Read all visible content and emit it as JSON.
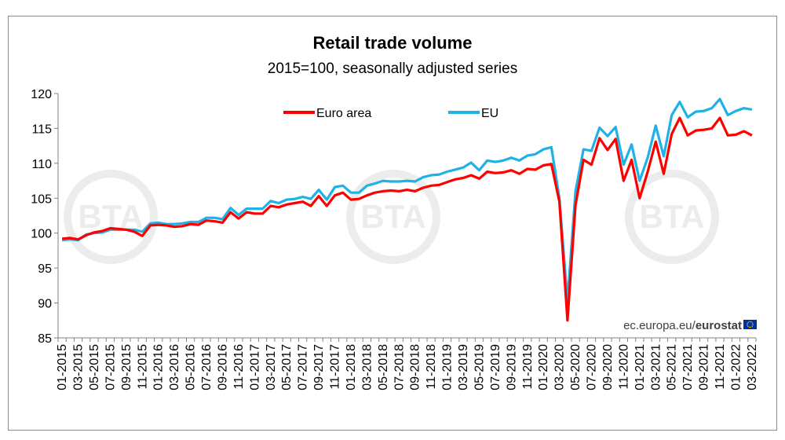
{
  "chart_data": {
    "type": "line",
    "title": "Retail trade volume",
    "subtitle": "2015=100, seasonally adjusted series",
    "xlabel": "",
    "ylabel": "",
    "ylim": [
      85,
      120
    ],
    "y_ticks": [
      85,
      90,
      95,
      100,
      105,
      110,
      115,
      120
    ],
    "grid": false,
    "legend_position": "top-center",
    "x": [
      "01-2015",
      "02-2015",
      "03-2015",
      "04-2015",
      "05-2015",
      "06-2015",
      "07-2015",
      "08-2015",
      "09-2015",
      "10-2015",
      "11-2015",
      "12-2015",
      "01-2016",
      "02-2016",
      "03-2016",
      "04-2016",
      "05-2016",
      "06-2016",
      "07-2016",
      "08-2016",
      "09-2016",
      "10-2016",
      "11-2016",
      "12-2016",
      "01-2017",
      "02-2017",
      "03-2017",
      "04-2017",
      "05-2017",
      "06-2017",
      "07-2017",
      "08-2017",
      "09-2017",
      "10-2017",
      "11-2017",
      "12-2017",
      "01-2018",
      "02-2018",
      "03-2018",
      "04-2018",
      "05-2018",
      "06-2018",
      "07-2018",
      "08-2018",
      "09-2018",
      "10-2018",
      "11-2018",
      "12-2018",
      "01-2019",
      "02-2019",
      "03-2019",
      "04-2019",
      "05-2019",
      "06-2019",
      "07-2019",
      "08-2019",
      "09-2019",
      "10-2019",
      "11-2019",
      "12-2019",
      "01-2020",
      "02-2020",
      "03-2020",
      "04-2020",
      "05-2020",
      "06-2020",
      "07-2020",
      "08-2020",
      "09-2020",
      "10-2020",
      "11-2020",
      "12-2020",
      "01-2021",
      "02-2021",
      "03-2021",
      "04-2021",
      "05-2021",
      "06-2021",
      "07-2021",
      "08-2021",
      "09-2021",
      "10-2021",
      "11-2021",
      "12-2021",
      "01-2022",
      "02-2022",
      "03-2022"
    ],
    "x_tick_labels": [
      "01-2015",
      "03-2015",
      "05-2015",
      "07-2015",
      "09-2015",
      "11-2015",
      "01-2016",
      "03-2016",
      "05-2016",
      "07-2016",
      "09-2016",
      "11-2016",
      "01-2017",
      "03-2017",
      "05-2017",
      "07-2017",
      "09-2017",
      "11-2017",
      "01-2018",
      "03-2018",
      "05-2018",
      "07-2018",
      "09-2018",
      "11-2018",
      "01-2019",
      "03-2019",
      "05-2019",
      "07-2019",
      "09-2019",
      "11-2019",
      "01-2020",
      "03-2020",
      "05-2020",
      "07-2020",
      "09-2020",
      "11-2020",
      "01-2021",
      "03-2021",
      "05-2021",
      "07-2021",
      "09-2021",
      "11-2021",
      "01-2022",
      "03-2022"
    ],
    "series": [
      {
        "name": "Euro area",
        "color": "#ff0000",
        "values": [
          99.2,
          99.3,
          99.1,
          99.7,
          100.1,
          100.3,
          100.7,
          100.6,
          100.5,
          100.2,
          99.6,
          101.1,
          101.2,
          101.1,
          100.9,
          101.0,
          101.3,
          101.2,
          101.8,
          101.7,
          101.5,
          103.0,
          102.1,
          103.0,
          102.8,
          102.8,
          103.9,
          103.7,
          104.1,
          104.3,
          104.5,
          103.9,
          105.3,
          103.9,
          105.4,
          105.8,
          104.8,
          104.9,
          105.4,
          105.8,
          106.0,
          106.1,
          106.0,
          106.2,
          106.0,
          106.5,
          106.8,
          106.9,
          107.3,
          107.7,
          107.9,
          108.3,
          107.8,
          108.8,
          108.6,
          108.7,
          109.0,
          108.5,
          109.2,
          109.1,
          109.7,
          109.9,
          104.5,
          87.5,
          104.0,
          110.5,
          109.8,
          113.6,
          111.9,
          113.5,
          107.5,
          110.5,
          105.0,
          108.8,
          113.1,
          108.5,
          114.2,
          116.5,
          114.0,
          114.7,
          114.8,
          115.0,
          116.5,
          114.0,
          114.1,
          114.6,
          114.0
        ]
      },
      {
        "name": "EU",
        "color": "#1fb2e6",
        "values": [
          99.0,
          99.1,
          99.0,
          99.8,
          100.0,
          100.1,
          100.5,
          100.5,
          100.5,
          100.5,
          100.2,
          101.4,
          101.5,
          101.3,
          101.3,
          101.4,
          101.6,
          101.6,
          102.2,
          102.2,
          102.0,
          103.6,
          102.6,
          103.5,
          103.5,
          103.5,
          104.6,
          104.3,
          104.8,
          104.9,
          105.2,
          104.9,
          106.2,
          104.8,
          106.6,
          106.8,
          105.8,
          105.8,
          106.8,
          107.1,
          107.5,
          107.4,
          107.4,
          107.5,
          107.4,
          108.0,
          108.3,
          108.4,
          108.8,
          109.1,
          109.4,
          110.1,
          109.0,
          110.4,
          110.2,
          110.4,
          110.8,
          110.4,
          111.1,
          111.3,
          112.0,
          112.3,
          105.0,
          90.3,
          106.0,
          112.0,
          111.8,
          115.1,
          113.9,
          115.2,
          109.8,
          112.7,
          107.5,
          110.8,
          115.4,
          111.0,
          116.9,
          118.8,
          116.6,
          117.4,
          117.5,
          117.9,
          119.2,
          116.9,
          117.5,
          117.9,
          117.7
        ]
      }
    ],
    "source_label_plain": "ec.europa.eu/",
    "source_label_bold": "eurostat",
    "flag_icon": "eu-flag-icon",
    "watermark": "BTA"
  }
}
